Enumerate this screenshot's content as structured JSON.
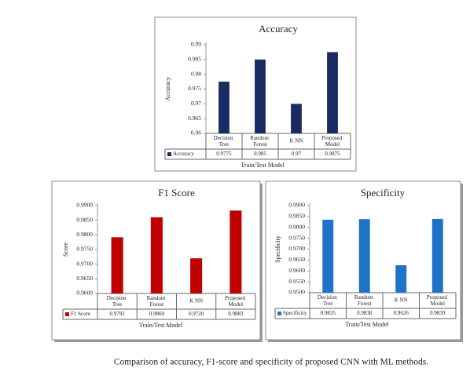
{
  "chart_data": [
    {
      "type": "bar",
      "title": "Accuracy",
      "x_label": "Train/Test Model",
      "y_label": "Accuracy",
      "categories": [
        "Decision Tree",
        "Random Forest",
        "K NN",
        "Proposed Model"
      ],
      "series": [
        {
          "name": "Accuracy",
          "color": "#1b2a63",
          "values": [
            0.9775,
            0.985,
            0.97,
            0.9875
          ]
        }
      ],
      "ylim": [
        0.96,
        0.99
      ],
      "yticks": [
        0.96,
        0.965,
        0.97,
        0.975,
        0.98,
        0.985,
        0.99
      ]
    },
    {
      "type": "bar",
      "title": "F1 Score",
      "x_label": "Train/Test Model",
      "y_label": "Score",
      "categories": [
        "Decision Tree",
        "Random Forest",
        "K NN",
        "Proposed Model"
      ],
      "series": [
        {
          "name": "F1 Score",
          "color": "#c00000",
          "values": [
            0.9792,
            0.986,
            0.972,
            0.9883
          ],
          "value_labels": [
            "0.9792",
            "0.9860",
            "0.9720",
            "0.9883"
          ]
        }
      ],
      "ylim": [
        0.96,
        0.99
      ],
      "yticks": [
        {
          "value": 0.96,
          "label": "0.9600"
        },
        {
          "value": 0.965,
          "label": "0.9650"
        },
        {
          "value": 0.97,
          "label": "0.9700"
        },
        {
          "value": 0.975,
          "label": "0.9750"
        },
        {
          "value": 0.98,
          "label": "0.9800"
        },
        {
          "value": 0.985,
          "label": "0.9850"
        },
        {
          "value": 0.99,
          "label": "0.9900"
        }
      ]
    },
    {
      "type": "bar",
      "title": "Specificity",
      "x_label": "Train/Test Model",
      "y_label": "Specificity",
      "categories": [
        "Decision Tree",
        "Random Forest",
        "K NN",
        "Proposed Model"
      ],
      "series": [
        {
          "name": "Specificity",
          "color": "#1e73c8",
          "values": [
            0.9835,
            0.9838,
            0.9626,
            0.9839
          ]
        }
      ],
      "ylim": [
        0.95,
        0.99
      ],
      "yticks": [
        {
          "value": 0.95,
          "label": "0.9500"
        },
        {
          "value": 0.955,
          "label": "0.9550"
        },
        {
          "value": 0.96,
          "label": "0.9600"
        },
        {
          "value": 0.965,
          "label": "0.9650"
        },
        {
          "value": 0.97,
          "label": "0.9700"
        },
        {
          "value": 0.975,
          "label": "0.9750"
        },
        {
          "value": 0.98,
          "label": "0.9800"
        },
        {
          "value": 0.985,
          "label": "0.9850"
        },
        {
          "value": 0.99,
          "label": "0.9900"
        }
      ]
    }
  ],
  "caption": "Comparison of accuracy, F1-score and specificity of proposed CNN with ML methods."
}
